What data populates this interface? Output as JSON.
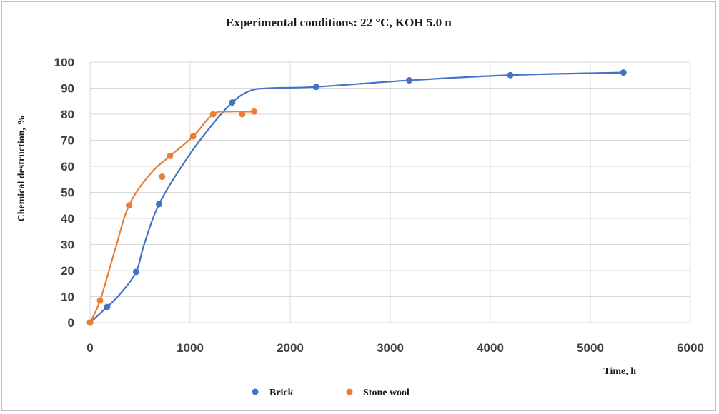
{
  "chart_data": {
    "type": "scatter",
    "title": "Experimental conditions: 22 °C, KOH 5.0 n",
    "xlabel": "Time, h",
    "ylabel": "Chemical destruction, %",
    "xlim": [
      0,
      6000
    ],
    "ylim": [
      0,
      100
    ],
    "xticks": [
      0,
      1000,
      2000,
      3000,
      4000,
      5000,
      6000
    ],
    "yticks": [
      0,
      10,
      20,
      30,
      40,
      50,
      60,
      70,
      80,
      90,
      100
    ],
    "xtick_labels": [
      "0",
      "1000",
      "2000",
      "3000",
      "4000",
      "5000",
      "6000"
    ],
    "ytick_labels": [
      "0",
      "10",
      "20",
      "30",
      "40",
      "50",
      "60",
      "70",
      "80",
      "90",
      "100"
    ],
    "grid": true,
    "legend_position": "bottom-left",
    "series": [
      {
        "name": "Brick",
        "color": "#4472c4",
        "points": [
          [
            0,
            0
          ],
          [
            170,
            6
          ],
          [
            460,
            19.5
          ],
          [
            690,
            45.5
          ],
          [
            1420,
            84.5
          ],
          [
            2260,
            90.5
          ],
          [
            3190,
            93
          ],
          [
            4200,
            95
          ],
          [
            5330,
            96
          ]
        ],
        "curve": [
          [
            0,
            0
          ],
          [
            170,
            6
          ],
          [
            300,
            11
          ],
          [
            460,
            19.5
          ],
          [
            540,
            30
          ],
          [
            690,
            45.5
          ],
          [
            950,
            62
          ],
          [
            1200,
            75
          ],
          [
            1420,
            84.5
          ],
          [
            1600,
            89
          ],
          [
            1800,
            90
          ],
          [
            2260,
            90.5
          ],
          [
            3190,
            93
          ],
          [
            4200,
            95
          ],
          [
            5330,
            96
          ]
        ]
      },
      {
        "name": "Stone wool",
        "color": "#ed7d31",
        "points": [
          [
            0,
            0
          ],
          [
            100,
            8.5
          ],
          [
            390,
            45
          ],
          [
            720,
            56
          ],
          [
            800,
            64
          ],
          [
            1030,
            71.5
          ],
          [
            1230,
            80
          ],
          [
            1520,
            80
          ],
          [
            1640,
            81
          ]
        ],
        "curve": [
          [
            0,
            0
          ],
          [
            100,
            8.5
          ],
          [
            250,
            28
          ],
          [
            390,
            45
          ],
          [
            600,
            57
          ],
          [
            800,
            64
          ],
          [
            1030,
            71.5
          ],
          [
            1230,
            80
          ],
          [
            1400,
            81
          ],
          [
            1520,
            81
          ],
          [
            1640,
            81
          ]
        ]
      }
    ]
  }
}
